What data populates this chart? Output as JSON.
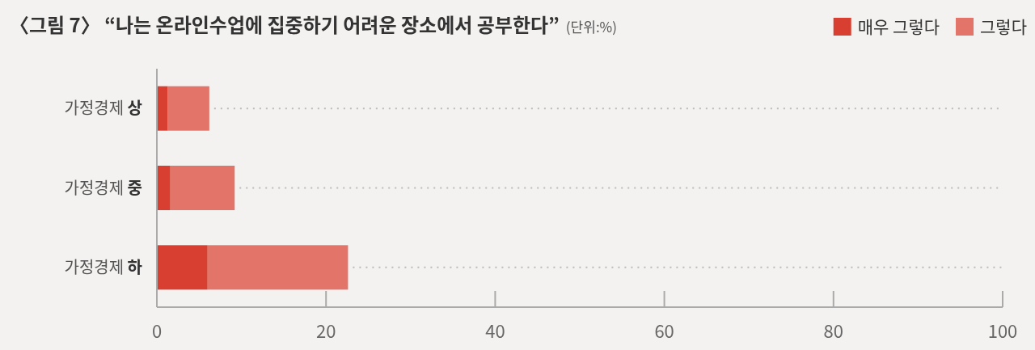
{
  "chart_data": {
    "type": "bar",
    "orientation": "horizontal",
    "stacked": true,
    "title": "〈그림 7〉 “나는 온라인수업에 집중하기 어려운 장소에서 공부한다”",
    "subtitle": "(단위:%)",
    "categories": [
      "가정경제 상",
      "가정경제 중",
      "가정경제 하"
    ],
    "series": [
      {
        "name": "매우 그렇다",
        "color": "#d93f30",
        "values": [
          1.3,
          1.6,
          6.0
        ]
      },
      {
        "name": "그렇다",
        "color": "#e2746a",
        "values": [
          4.9,
          7.6,
          16.6
        ]
      }
    ],
    "xlim": [
      0,
      100
    ],
    "xticks": [
      0,
      20,
      40,
      60,
      80,
      100
    ],
    "legend": "top right",
    "grid": "y"
  }
}
